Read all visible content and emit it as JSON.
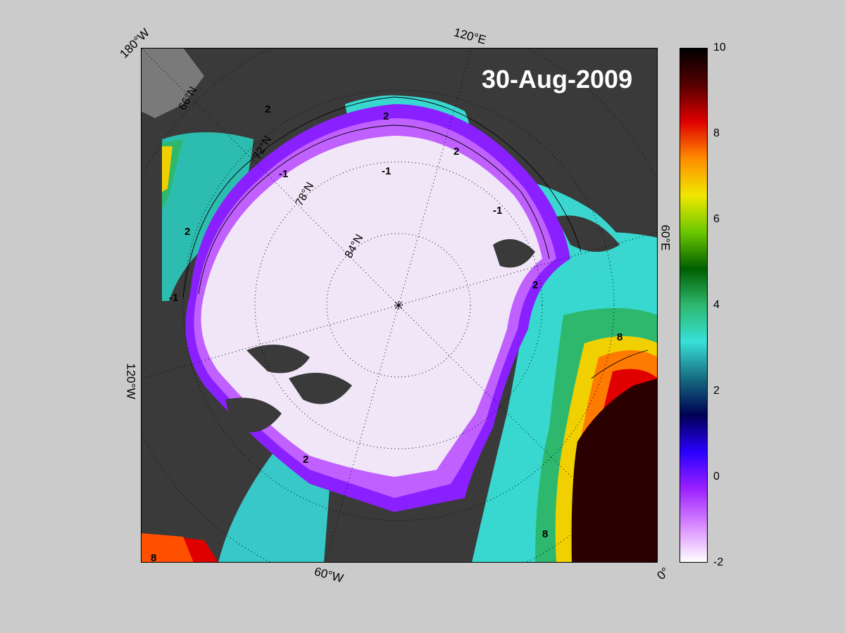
{
  "map": {
    "date": "30-Aug-2009",
    "longitude_labels": [
      "180°W",
      "120°E",
      "60°E",
      "0°",
      "60°W",
      "120°W"
    ],
    "latitude_labels": [
      "66°N",
      "72°N",
      "78°N",
      "84°N"
    ],
    "contour_labels": [
      "2",
      "-1",
      "8"
    ],
    "colors": {
      "land": "#3a3a3a",
      "land_masked": "#7a7a7a",
      "ice_interior": "#f1e6f8",
      "background": "#cbcbcb"
    }
  },
  "colorbar": {
    "min": -2,
    "max": 10,
    "ticks": [
      "10",
      "8",
      "6",
      "4",
      "2",
      "0",
      "-2"
    ],
    "stops": [
      "#ffffff",
      "#d88aff",
      "#9a20ff",
      "#2a00ff",
      "#000055",
      "#166b80",
      "#38e0d8",
      "#2eb86e",
      "#005f00",
      "#6cc800",
      "#f0e800",
      "#ff8c00",
      "#e00000",
      "#550000",
      "#000000"
    ]
  }
}
